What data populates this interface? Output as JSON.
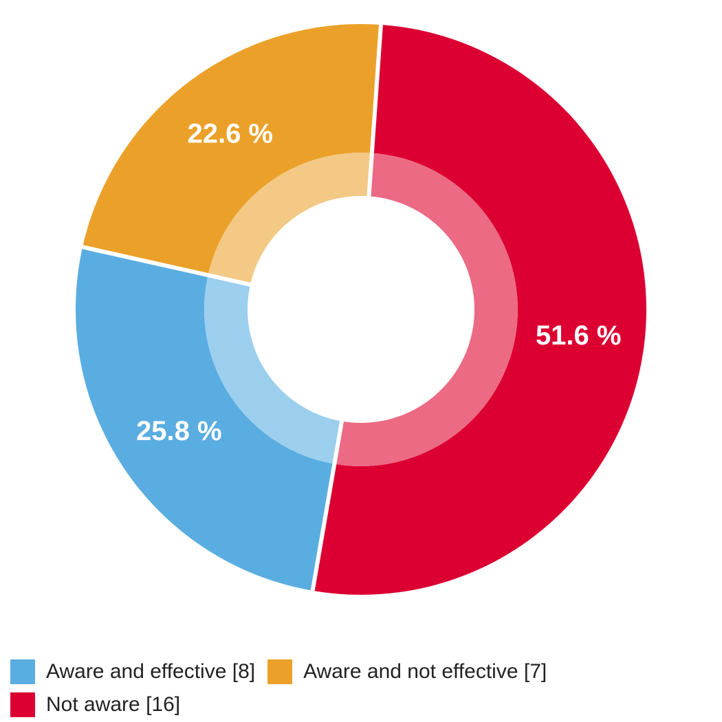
{
  "chart_data": {
    "type": "pie",
    "style": "donut",
    "slices": [
      {
        "label": "Not aware [16]",
        "count": 16,
        "percent": 51.6,
        "percent_label": "51.6 %",
        "color": "#dc0032",
        "inner_color": "#ec6a83"
      },
      {
        "label": "Aware and effective [8]",
        "count": 8,
        "percent": 25.8,
        "percent_label": "25.8 %",
        "color": "#5aade1",
        "inner_color": "#9ccfee"
      },
      {
        "label": "Aware and not effective [7]",
        "count": 7,
        "percent": 22.6,
        "percent_label": "22.6 %",
        "color": "#eba129",
        "inner_color": "#f3c985"
      }
    ],
    "legend_order": [
      1,
      2,
      0
    ],
    "legend_position": "bottom-left"
  }
}
